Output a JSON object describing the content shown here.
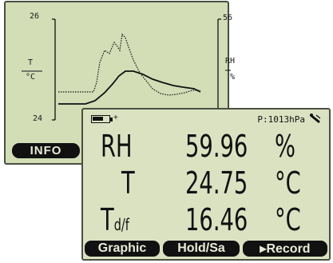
{
  "back_screen": {
    "y_left_top": "26",
    "y_left_bottom": "24",
    "y_right_top": "56",
    "left_axis_label_top": "T",
    "left_axis_label_bottom": "°C",
    "right_axis_label_top": "RH",
    "right_axis_label_bottom": "%",
    "info_button": "INFO"
  },
  "front_screen": {
    "pressure": "P:1013hPa",
    "battery_level": 0.7,
    "rows": [
      {
        "quantity": "RH",
        "quantity_sub": "",
        "value": "59.96",
        "unit": "%"
      },
      {
        "quantity": "T",
        "quantity_sub": "",
        "value": "24.75",
        "unit": "°C"
      },
      {
        "quantity": "T",
        "quantity_sub": "d/f",
        "value": "16.46",
        "unit": "°C"
      }
    ],
    "softkeys": [
      "Graphic",
      "Hold/Sa",
      "▸Record"
    ]
  },
  "colors": {
    "lcd_background": "#d3ddb6",
    "lcd_ink": "#111111",
    "bezel": "#4a4f42"
  },
  "icons": [
    "battery-icon",
    "plug-icon",
    "probe-icon"
  ]
}
